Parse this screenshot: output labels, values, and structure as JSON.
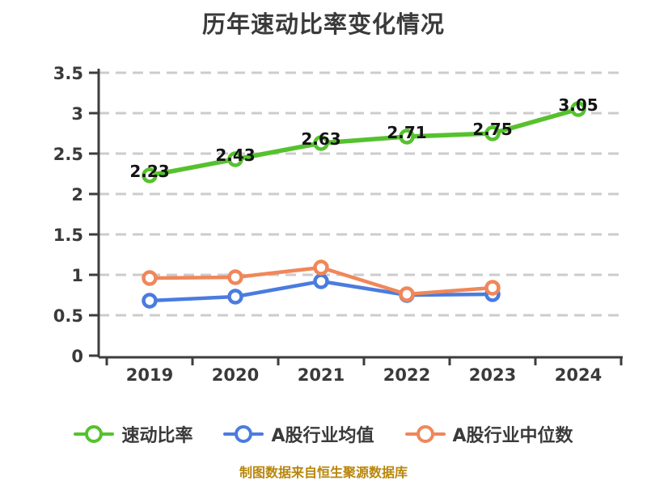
{
  "footer": {
    "text": "制图数据来自恒生聚源数据库"
  },
  "colors": {
    "quick_ratio_green": "#55c22d",
    "industry_avg_blue": "#4a7be0",
    "industry_median_orange": "#f0875a",
    "grid": "#cccccc",
    "axis": "#3d3d3d",
    "tick_label": "#3a3a3a",
    "point_label": "#141414",
    "title_text": "#3a3a3a",
    "legend_text": "#3a3a3a",
    "footer_text": "#b8860b"
  },
  "chart_data": {
    "type": "line",
    "title": "历年速动比率变化情况",
    "categories": [
      "2019",
      "2020",
      "2021",
      "2022",
      "2023",
      "2024"
    ],
    "series": [
      {
        "name": "速动比率",
        "color_key": "quick_ratio_green",
        "values": [
          2.23,
          2.43,
          2.63,
          2.71,
          2.75,
          3.05
        ],
        "point_labels": [
          "2.23",
          "2.43",
          "2.63",
          "2.71",
          "2.75",
          "3.05"
        ]
      },
      {
        "name": "A股行业均值",
        "color_key": "industry_avg_blue",
        "values": [
          0.68,
          0.73,
          0.92,
          0.75,
          0.76,
          null
        ],
        "point_labels": null
      },
      {
        "name": "A股行业中位数",
        "color_key": "industry_median_orange",
        "values": [
          0.96,
          0.97,
          1.09,
          0.76,
          0.84,
          null
        ],
        "point_labels": null
      }
    ],
    "ylim": [
      0,
      3.5
    ],
    "ytick_step": 0.5,
    "grid": "dashed",
    "legend_position": "bottom",
    "xlabel": "",
    "ylabel": ""
  }
}
